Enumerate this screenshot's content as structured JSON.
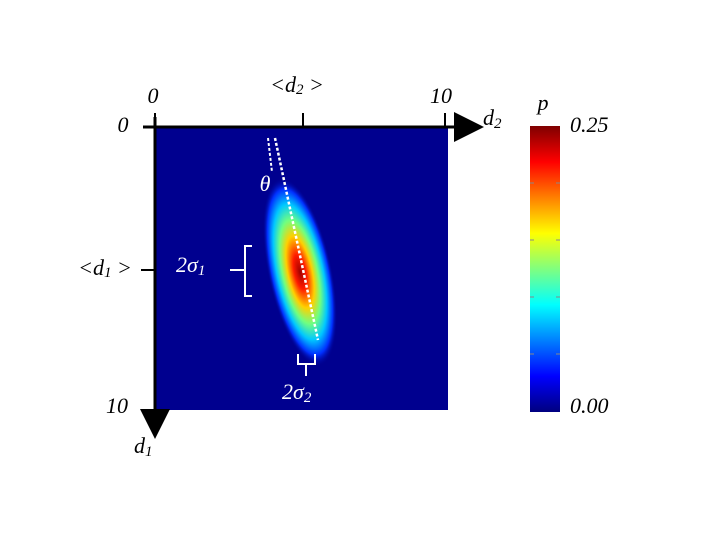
{
  "x_axis": {
    "label": {
      "main": "d",
      "sub": "2"
    },
    "ticks": [
      "0",
      "10"
    ],
    "mean_label": {
      "pre": "<d",
      "sub": "2",
      "post": " >"
    }
  },
  "y_axis": {
    "label": {
      "main": "d",
      "sub": "1"
    },
    "ticks": [
      "0",
      "10"
    ],
    "mean_label": {
      "pre": "<d",
      "sub": "1",
      "post": " >"
    }
  },
  "annotations": {
    "angle": "θ",
    "sigma1": {
      "main": "2σ",
      "sub": "1"
    },
    "sigma2": {
      "main": "2σ",
      "sub": "2"
    }
  },
  "colorbar": {
    "label": "p",
    "max": "0.25",
    "min": "0.00"
  }
}
